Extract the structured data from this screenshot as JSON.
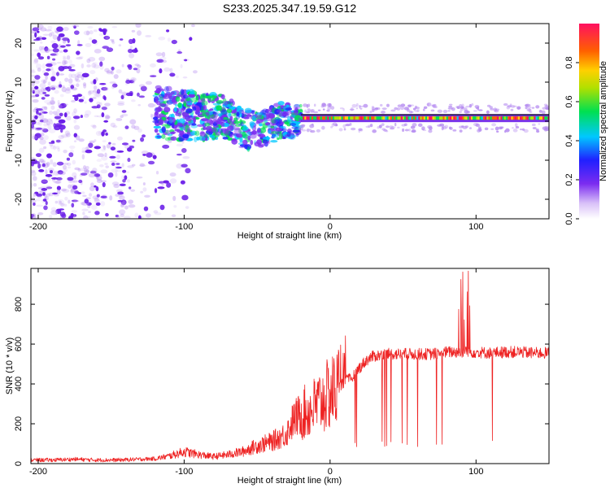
{
  "title": "S233.2025.347.19.59.G12",
  "colors": {
    "snr_line": "#ee2222",
    "frame": "#000000",
    "band": "#1a1a1a"
  },
  "chart_data": [
    {
      "type": "heatmap",
      "name": "spectrogram",
      "xlabel": "Height of straight line (km)",
      "ylabel": "Frequency (Hz)",
      "xlim": [
        -205,
        150
      ],
      "ylim": [
        -25,
        25
      ],
      "xticks": [
        -200,
        -100,
        0,
        100
      ],
      "yticks": [
        -20,
        -10,
        0,
        10,
        20
      ],
      "colorbar": {
        "label": "Normalized spectral amplitude",
        "range": [
          0.0,
          1.0
        ],
        "ticks": [
          0.0,
          0.2,
          0.4,
          0.6,
          0.8
        ],
        "tick_labels": [
          "0.0",
          "0.2",
          "0.4",
          "0.6",
          "0.8"
        ],
        "colormap": [
          "#ffffff",
          "#7b2cf0",
          "#2020ff",
          "#00c8ff",
          "#00e050",
          "#b0e000",
          "#ffd000",
          "#ff6000",
          "#ff1060"
        ]
      },
      "features": {
        "scatter_region_x": [
          -205,
          -120
        ],
        "scatter_region_freq": [
          -25,
          25
        ],
        "turbulent_region_x": [
          -120,
          -20
        ],
        "turbulent_center_freq": [
          2,
          0
        ],
        "stable_tone_x": [
          -20,
          150
        ],
        "stable_tone_freq": 0.8,
        "peak_amplitude": 0.95
      }
    },
    {
      "type": "line",
      "name": "snr",
      "xlabel": "Height of straight line (km)",
      "ylabel": "SNR (10 * v/v)",
      "xlim": [
        -205,
        150
      ],
      "ylim": [
        0,
        980
      ],
      "xticks": [
        -200,
        -100,
        0,
        100
      ],
      "yticks": [
        0,
        200,
        400,
        600,
        800
      ],
      "series": [
        {
          "name": "SNR",
          "color": "#ee2222",
          "x": [
            -205,
            -190,
            -175,
            -160,
            -145,
            -130,
            -120,
            -110,
            -100,
            -90,
            -80,
            -70,
            -60,
            -50,
            -40,
            -30,
            -25,
            -20,
            -15,
            -10,
            -5,
            0,
            5,
            10,
            15,
            20,
            25,
            30,
            40,
            50,
            60,
            70,
            80,
            90,
            100,
            110,
            120,
            130,
            140,
            150
          ],
          "values": [
            18,
            18,
            22,
            18,
            18,
            22,
            25,
            38,
            60,
            45,
            35,
            45,
            60,
            90,
            110,
            150,
            220,
            250,
            260,
            290,
            320,
            350,
            380,
            410,
            430,
            480,
            520,
            540,
            550,
            550,
            550,
            550,
            560,
            560,
            560,
            555,
            560,
            560,
            555,
            555
          ]
        }
      ]
    }
  ]
}
